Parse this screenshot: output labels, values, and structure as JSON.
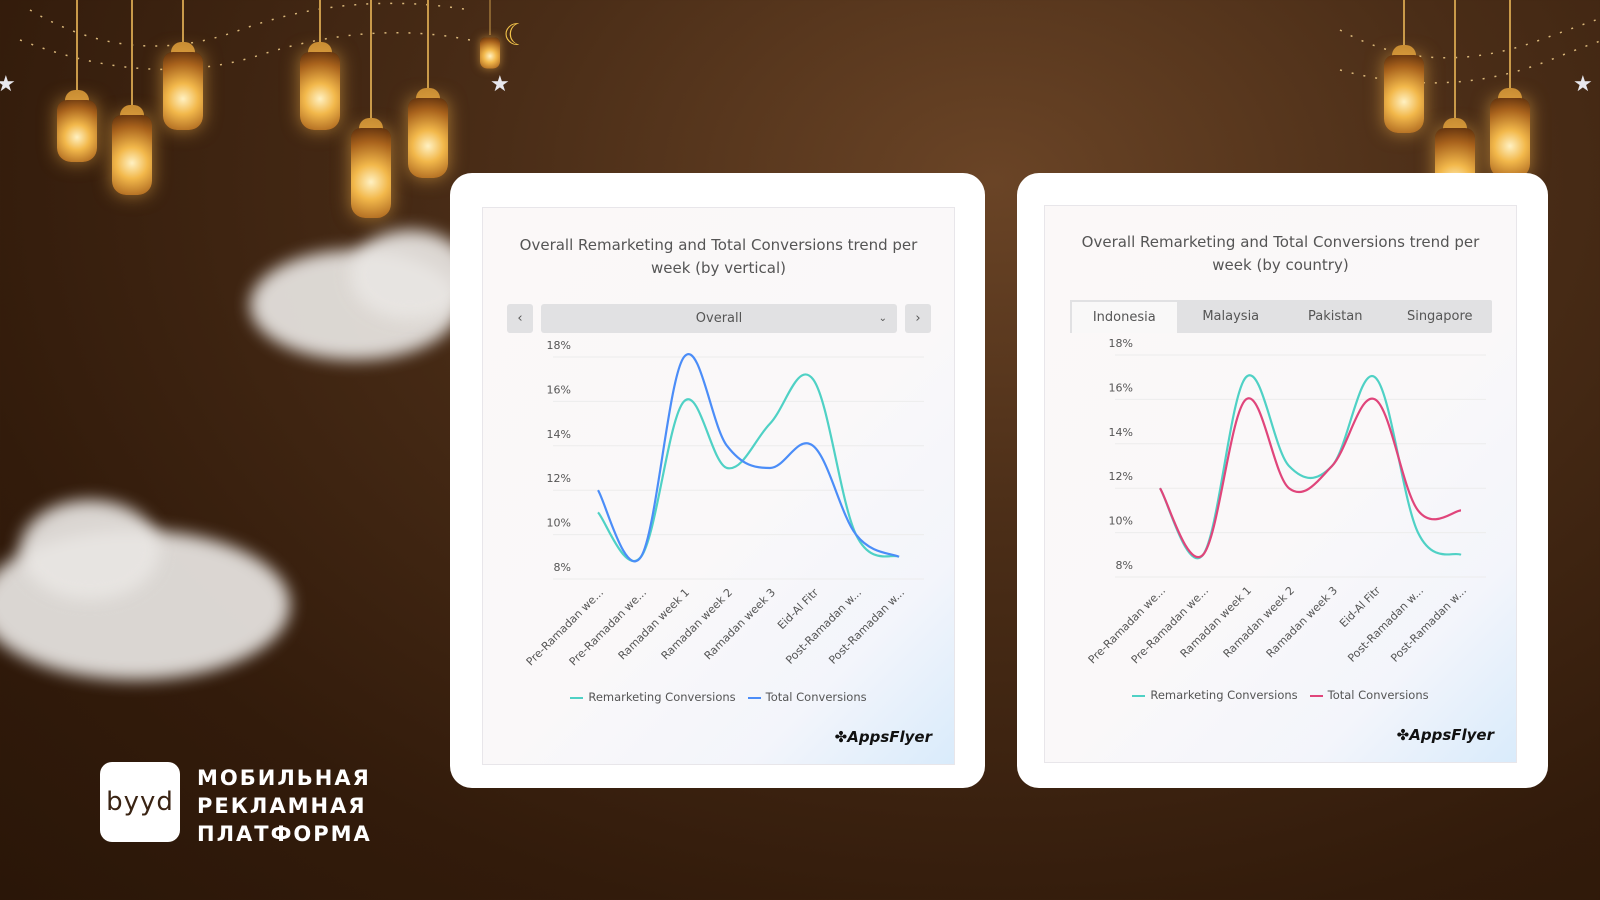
{
  "brand": {
    "logo_text": "byyd",
    "tagline": [
      "МОБИЛЬНАЯ",
      "РЕКЛАМНАЯ",
      "ПЛАТФОРМА"
    ]
  },
  "colors": {
    "remarketing": "#4fd1c5",
    "total_left": "#4b8df8",
    "total_right": "#e0457b",
    "background": "#3a2312"
  },
  "left_card": {
    "title": "Overall Remarketing and Total Conversions trend per week (by vertical)",
    "prev_icon": "chevron-left-icon",
    "next_icon": "chevron-right-icon",
    "dropdown": {
      "selected": "Overall",
      "icon": "chevron-down-icon"
    },
    "logo": "AppsFlyer"
  },
  "right_card": {
    "title": "Overall Remarketing and Total Conversions trend per week (by country)",
    "tabs": [
      {
        "label": "Indonesia",
        "active": true
      },
      {
        "label": "Malaysia",
        "active": false
      },
      {
        "label": "Pakistan",
        "active": false
      },
      {
        "label": "Singapore",
        "active": false
      }
    ],
    "logo": "AppsFlyer"
  },
  "chart_data": [
    {
      "type": "line",
      "title": "Overall Remarketing and Total Conversions trend per week (by vertical)",
      "categories": [
        "Pre-Ramadan we...",
        "Pre-Ramadan we...",
        "Ramadan week 1",
        "Ramadan week 2",
        "Ramadan week 3",
        "Eid-Al Fitr",
        "Post-Ramadan w...",
        "Post-Ramadan w..."
      ],
      "yticks": [
        "8%",
        "10%",
        "12%",
        "14%",
        "16%",
        "18%"
      ],
      "ylim": [
        8,
        18
      ],
      "grid": true,
      "legend": "bottom",
      "series": [
        {
          "name": "Remarketing Conversions",
          "color": "#4fd1c5",
          "values": [
            11,
            9,
            16,
            13,
            15,
            17,
            10,
            9
          ]
        },
        {
          "name": "Total Conversions",
          "color": "#4b8df8",
          "values": [
            12,
            9,
            18,
            14,
            13,
            14,
            10,
            9
          ]
        }
      ]
    },
    {
      "type": "line",
      "title": "Overall Remarketing and Total Conversions trend per week (by country)",
      "categories": [
        "Pre-Ramadan we...",
        "Pre-Ramadan we...",
        "Ramadan week 1",
        "Ramadan week 2",
        "Ramadan week 3",
        "Eid-Al Fitr",
        "Post-Ramadan w...",
        "Post-Ramadan w..."
      ],
      "yticks": [
        "8%",
        "10%",
        "12%",
        "14%",
        "16%",
        "18%"
      ],
      "ylim": [
        8,
        18
      ],
      "grid": true,
      "legend": "bottom",
      "series": [
        {
          "name": "Remarketing Conversions",
          "color": "#4fd1c5",
          "values": [
            12,
            9,
            17,
            13,
            13,
            17,
            10,
            9
          ]
        },
        {
          "name": "Total Conversions",
          "color": "#e0457b",
          "values": [
            12,
            9,
            16,
            12,
            13,
            16,
            11,
            11
          ]
        }
      ]
    }
  ]
}
